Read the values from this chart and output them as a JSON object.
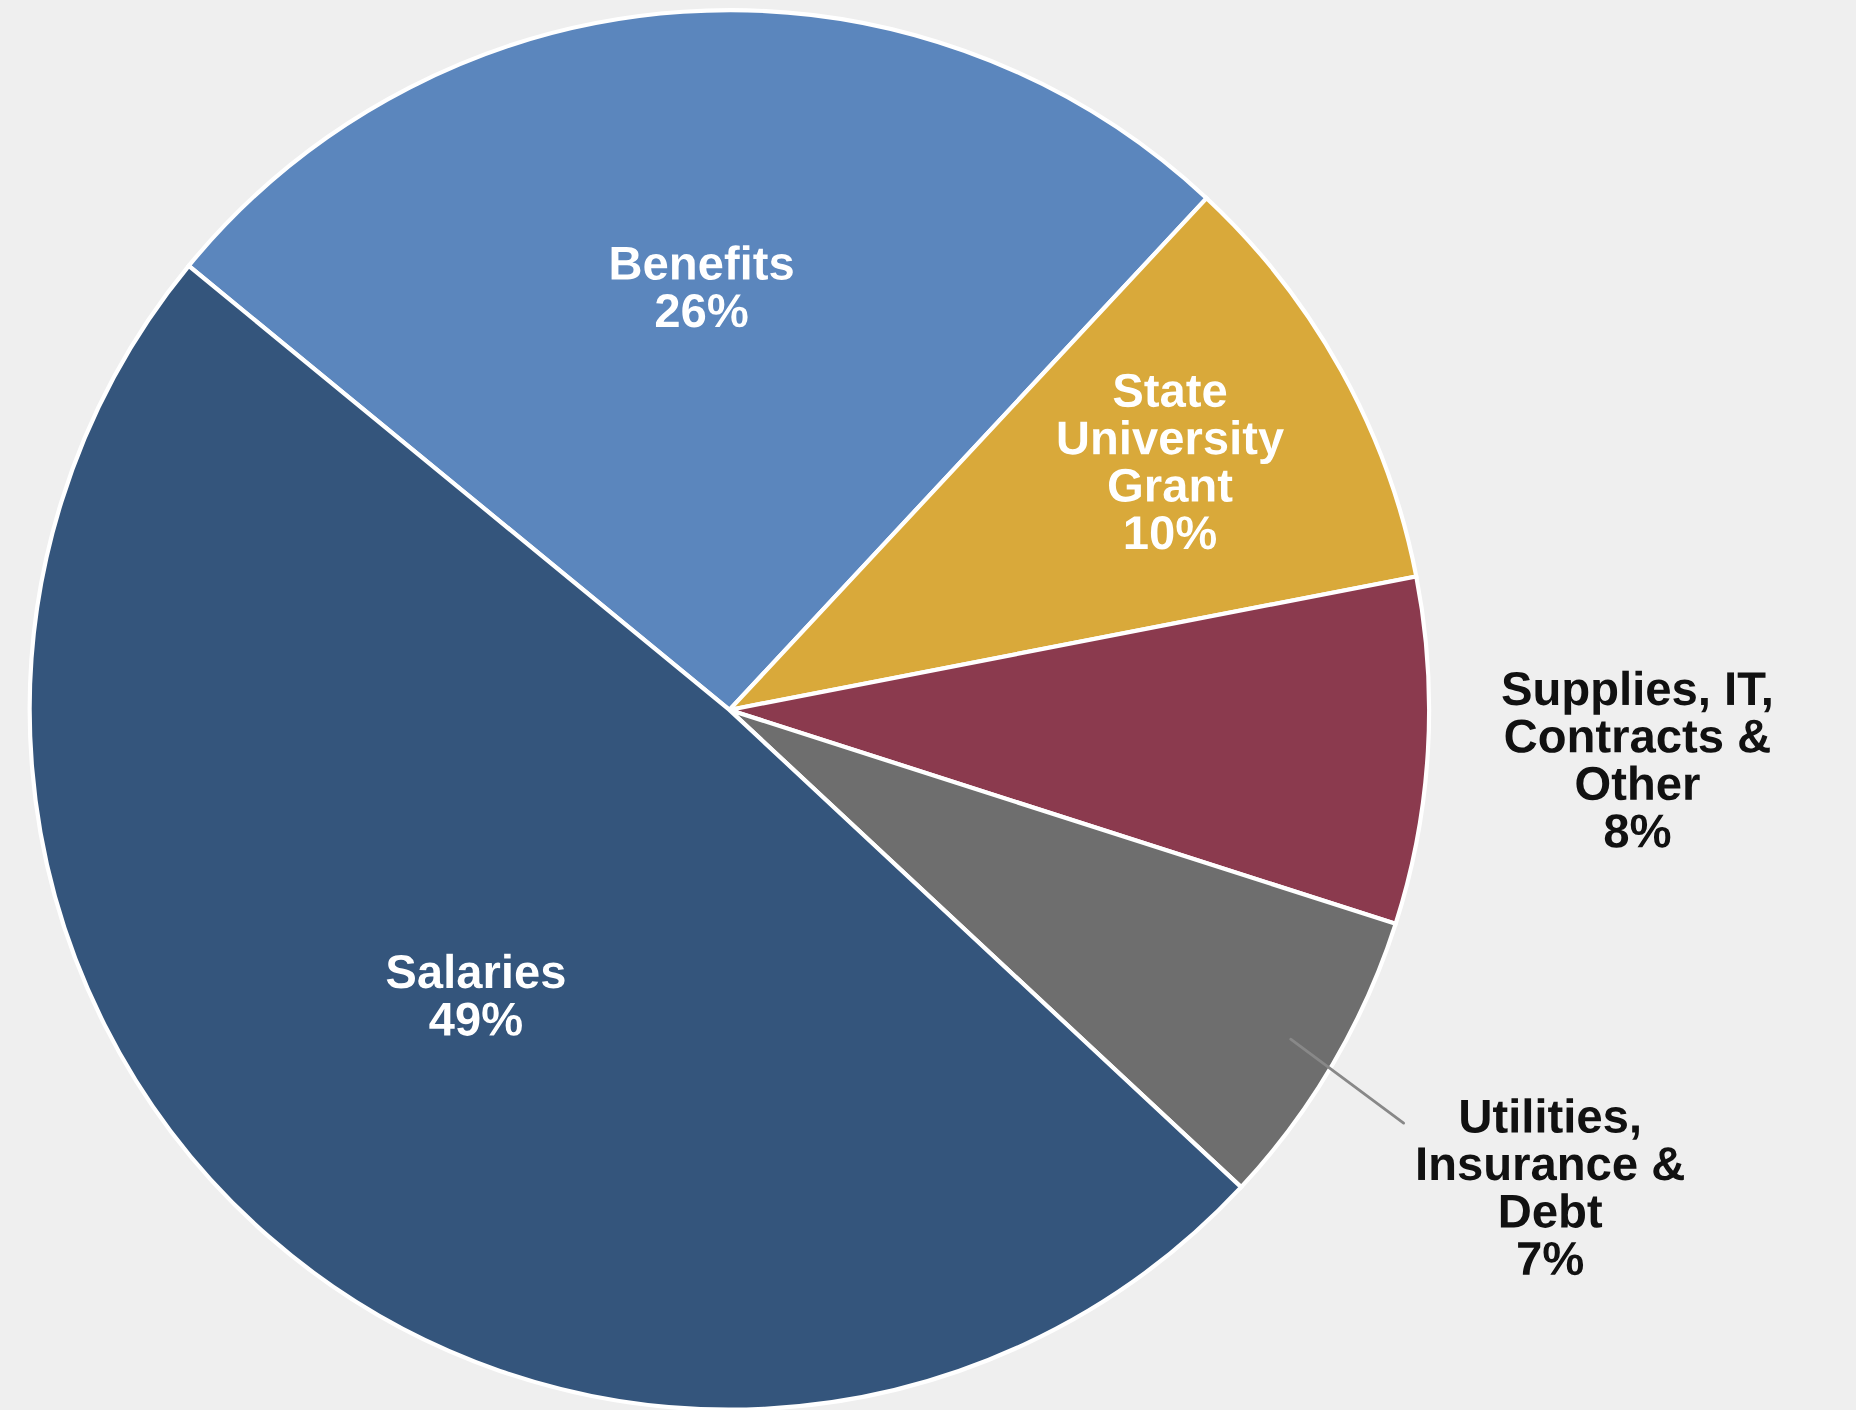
{
  "chart_data": {
    "type": "pie",
    "categories": [
      "Benefits",
      "State\nUniversity\nGrant",
      "Supplies, IT,\nContracts &\nOther",
      "Utilities,\nInsurance &\nDebt",
      "Salaries"
    ],
    "values": [
      26,
      10,
      8,
      7,
      49
    ],
    "colors": [
      "#5b86bd",
      "#d9a93a",
      "#8b3a4e",
      "#6e6e6e",
      "#34557c"
    ],
    "value_labels": [
      "26%",
      "10%",
      "8%",
      "7%",
      "49%"
    ],
    "legend": false
  }
}
